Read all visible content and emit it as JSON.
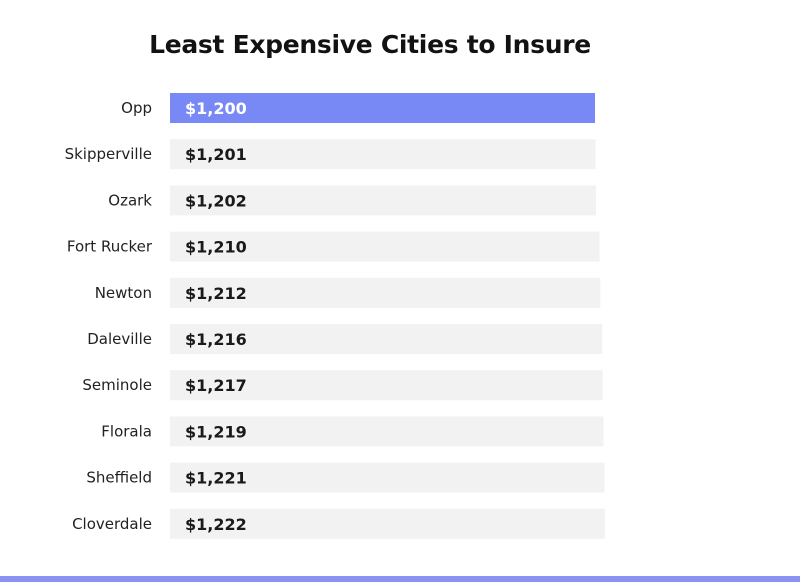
{
  "chart_data": {
    "type": "bar",
    "orientation": "horizontal",
    "title": "Least Expensive Cities to Insure",
    "xlabel": "",
    "ylabel": "",
    "categories": [
      "Opp",
      "Skipperville",
      "Ozark",
      "Fort Rucker",
      "Newton",
      "Daleville",
      "Seminole",
      "Florala",
      "Sheffield",
      "Cloverdale"
    ],
    "values": [
      1200,
      1201,
      1202,
      1210,
      1212,
      1216,
      1217,
      1219,
      1221,
      1222
    ],
    "value_labels": [
      "$1,200",
      "$1,201",
      "$1,202",
      "$1,210",
      "$1,212",
      "$1,216",
      "$1,217",
      "$1,219",
      "$1,221",
      "$1,222"
    ],
    "highlight_index": 0,
    "grid": false,
    "legend": "none"
  },
  "colors": {
    "highlight_bar": "#7889f5",
    "bar": "#f2f2f2",
    "highlight_text": "#ffffff",
    "text": "#1a1a1a",
    "bottom_rule": "#8a93f2"
  }
}
